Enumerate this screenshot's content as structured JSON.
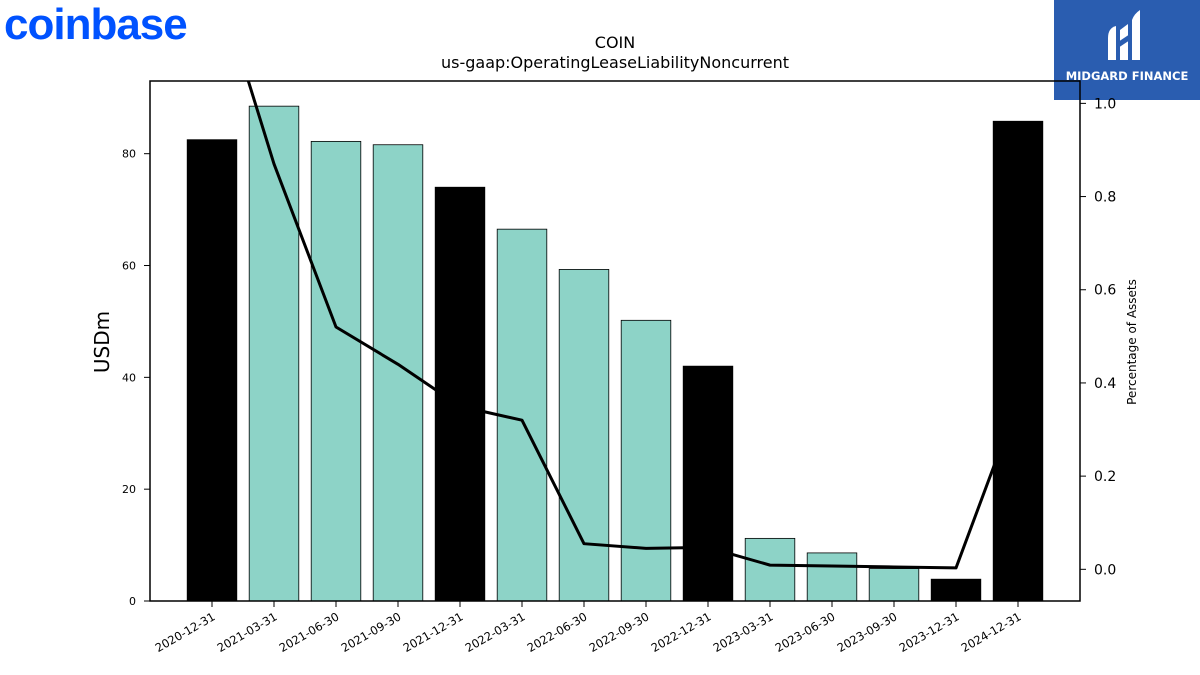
{
  "brand": {
    "name": "coinbase",
    "color": "#0052ff"
  },
  "watermark": {
    "text": "MIDGARD FINANCE",
    "bg": "#2a5db0"
  },
  "chart_data": {
    "type": "bar",
    "title": "COIN",
    "subtitle": "us-gaap:OperatingLeaseLiabilityNoncurrent",
    "ylabel": "USDm",
    "y2label": "Percentage of Assets",
    "ylim": [
      0,
      93
    ],
    "y2lim": [
      -0.068,
      1.048
    ],
    "yticks": [
      0,
      20,
      40,
      60,
      80
    ],
    "y2ticks": [
      0.0,
      0.2,
      0.4,
      0.6,
      0.8,
      1.0
    ],
    "categories": [
      "2020-12-31",
      "2021-03-31",
      "2021-06-30",
      "2021-09-30",
      "2021-12-31",
      "2022-03-31",
      "2022-06-30",
      "2022-09-30",
      "2022-12-31",
      "2023-03-31",
      "2023-06-30",
      "2023-09-30",
      "2023-12-31",
      "2024-12-31"
    ],
    "values": [
      82.5,
      88.5,
      82.2,
      81.6,
      74.0,
      66.5,
      59.3,
      50.2,
      42.0,
      11.2,
      8.6,
      5.8,
      3.9,
      85.8
    ],
    "bar_colors": [
      "#000000",
      "#8dd3c7",
      "#8dd3c7",
      "#8dd3c7",
      "#000000",
      "#8dd3c7",
      "#8dd3c7",
      "#8dd3c7",
      "#000000",
      "#8dd3c7",
      "#8dd3c7",
      "#8dd3c7",
      "#000000",
      "#000000"
    ],
    "line_series": {
      "values": [
        1.3,
        0.87,
        0.52,
        0.44,
        0.35,
        0.32,
        0.055,
        0.045,
        0.047,
        0.009,
        0.007,
        0.005,
        0.003,
        0.36
      ]
    },
    "grid": false,
    "legend": "none"
  }
}
